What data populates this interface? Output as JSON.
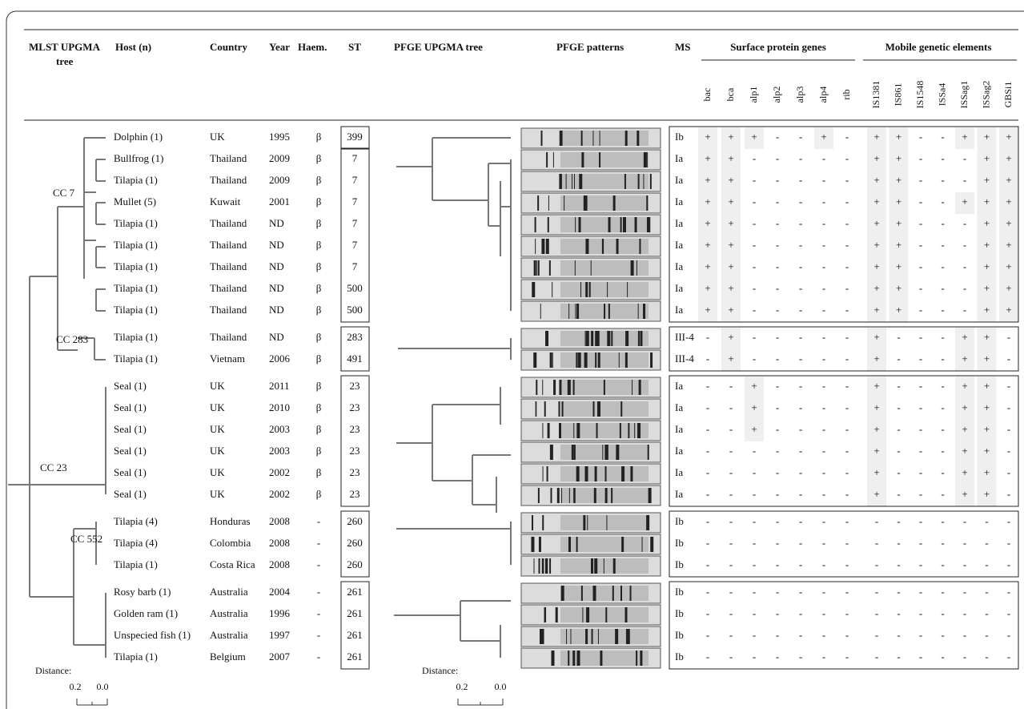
{
  "header": {
    "mlst_tree": [
      "MLST UPGMA",
      "tree"
    ],
    "host": "Host (n)",
    "country": "Country",
    "year": "Year",
    "haem": "Haem.",
    "st": "ST",
    "pfge_tree": "PFGE UPGMA tree",
    "pfge_patterns": "PFGE patterns",
    "ms": "MS",
    "surface_protein_genes": "Surface protein genes",
    "mobile_genetic_elements": "Mobile genetic elements"
  },
  "surface_genes": [
    "bac",
    "bca",
    "alp1",
    "alp2",
    "alp3",
    "alp4",
    "rib"
  ],
  "mobile_elements": [
    "IS1381",
    "IS861",
    "IS1548",
    "ISSa4",
    "ISSag1",
    "ISSag2",
    "GBSi1"
  ],
  "rows": [
    {
      "host": "Dolphin (1)",
      "country": "UK",
      "year": "1995",
      "haem": "β",
      "st": "399",
      "ms": "Ib",
      "genes": [
        "+",
        "+",
        "+",
        "-",
        "-",
        "+",
        "-"
      ],
      "mge": [
        "+",
        "+",
        "-",
        "-",
        "+",
        "+",
        "+"
      ]
    },
    {
      "host": "Bullfrog (1)",
      "country": "Thailand",
      "year": "2009",
      "haem": "β",
      "st": "7",
      "ms": "Ia",
      "genes": [
        "+",
        "+",
        "-",
        "-",
        "-",
        "-",
        "-"
      ],
      "mge": [
        "+",
        "+",
        "-",
        "-",
        "-",
        "+",
        "+"
      ]
    },
    {
      "host": "Tilapia (1)",
      "country": "Thailand",
      "year": "2009",
      "haem": "β",
      "st": "7",
      "ms": "Ia",
      "genes": [
        "+",
        "+",
        "-",
        "-",
        "-",
        "-",
        "-"
      ],
      "mge": [
        "+",
        "+",
        "-",
        "-",
        "-",
        "+",
        "+"
      ]
    },
    {
      "host": "Mullet (5)",
      "country": "Kuwait",
      "year": "2001",
      "haem": "β",
      "st": "7",
      "ms": "Ia",
      "genes": [
        "+",
        "+",
        "-",
        "-",
        "-",
        "-",
        "-"
      ],
      "mge": [
        "+",
        "+",
        "-",
        "-",
        "+",
        "+",
        "+"
      ]
    },
    {
      "host": "Tilapia (1)",
      "country": "Thailand",
      "year": "ND",
      "haem": "β",
      "st": "7",
      "ms": "Ia",
      "genes": [
        "+",
        "+",
        "-",
        "-",
        "-",
        "-",
        "-"
      ],
      "mge": [
        "+",
        "+",
        "-",
        "-",
        "-",
        "+",
        "+"
      ]
    },
    {
      "host": "Tilapia (1)",
      "country": "Thailand",
      "year": "ND",
      "haem": "β",
      "st": "7",
      "ms": "Ia",
      "genes": [
        "+",
        "+",
        "-",
        "-",
        "-",
        "-",
        "-"
      ],
      "mge": [
        "+",
        "+",
        "-",
        "-",
        "-",
        "+",
        "+"
      ]
    },
    {
      "host": "Tilapia (1)",
      "country": "Thailand",
      "year": "ND",
      "haem": "β",
      "st": "7",
      "ms": "Ia",
      "genes": [
        "+",
        "+",
        "-",
        "-",
        "-",
        "-",
        "-"
      ],
      "mge": [
        "+",
        "+",
        "-",
        "-",
        "-",
        "+",
        "+"
      ]
    },
    {
      "host": "Tilapia (1)",
      "country": "Thailand",
      "year": "ND",
      "haem": "β",
      "st": "500",
      "ms": "Ia",
      "genes": [
        "+",
        "+",
        "-",
        "-",
        "-",
        "-",
        "-"
      ],
      "mge": [
        "+",
        "+",
        "-",
        "-",
        "-",
        "+",
        "+"
      ]
    },
    {
      "host": "Tilapia (1)",
      "country": "Thailand",
      "year": "ND",
      "haem": "β",
      "st": "500",
      "ms": "Ia",
      "genes": [
        "+",
        "+",
        "-",
        "-",
        "-",
        "-",
        "-"
      ],
      "mge": [
        "+",
        "+",
        "-",
        "-",
        "-",
        "+",
        "+"
      ]
    },
    {
      "host": "Tilapia (1)",
      "country": "Thailand",
      "year": "ND",
      "haem": "β",
      "st": "283",
      "ms": "III-4",
      "genes": [
        "-",
        "+",
        "-",
        "-",
        "-",
        "-",
        "-"
      ],
      "mge": [
        "+",
        "-",
        "-",
        "-",
        "+",
        "+",
        "-"
      ]
    },
    {
      "host": "Tilapia (1)",
      "country": "Vietnam",
      "year": "2006",
      "haem": "β",
      "st": "491",
      "ms": "III-4",
      "genes": [
        "-",
        "+",
        "-",
        "-",
        "-",
        "-",
        "-"
      ],
      "mge": [
        "+",
        "-",
        "-",
        "-",
        "+",
        "+",
        "-"
      ]
    },
    {
      "host": "Seal (1)",
      "country": "UK",
      "year": "2011",
      "haem": "β",
      "st": "23",
      "ms": "Ia",
      "genes": [
        "-",
        "-",
        "+",
        "-",
        "-",
        "-",
        "-"
      ],
      "mge": [
        "+",
        "-",
        "-",
        "-",
        "+",
        "+",
        "-"
      ]
    },
    {
      "host": "Seal (1)",
      "country": "UK",
      "year": "2010",
      "haem": "β",
      "st": "23",
      "ms": "Ia",
      "genes": [
        "-",
        "-",
        "+",
        "-",
        "-",
        "-",
        "-"
      ],
      "mge": [
        "+",
        "-",
        "-",
        "-",
        "+",
        "+",
        "-"
      ]
    },
    {
      "host": "Seal (1)",
      "country": "UK",
      "year": "2003",
      "haem": "β",
      "st": "23",
      "ms": "Ia",
      "genes": [
        "-",
        "-",
        "+",
        "-",
        "-",
        "-",
        "-"
      ],
      "mge": [
        "+",
        "-",
        "-",
        "-",
        "+",
        "+",
        "-"
      ]
    },
    {
      "host": "Seal (1)",
      "country": "UK",
      "year": "2003",
      "haem": "β",
      "st": "23",
      "ms": "Ia",
      "genes": [
        "-",
        "-",
        "-",
        "-",
        "-",
        "-",
        "-"
      ],
      "mge": [
        "+",
        "-",
        "-",
        "-",
        "+",
        "+",
        "-"
      ]
    },
    {
      "host": "Seal (1)",
      "country": "UK",
      "year": "2002",
      "haem": "β",
      "st": "23",
      "ms": "Ia",
      "genes": [
        "-",
        "-",
        "-",
        "-",
        "-",
        "-",
        "-"
      ],
      "mge": [
        "+",
        "-",
        "-",
        "-",
        "+",
        "+",
        "-"
      ]
    },
    {
      "host": "Seal (1)",
      "country": "UK",
      "year": "2002",
      "haem": "β",
      "st": "23",
      "ms": "Ia",
      "genes": [
        "-",
        "-",
        "-",
        "-",
        "-",
        "-",
        "-"
      ],
      "mge": [
        "+",
        "-",
        "-",
        "-",
        "+",
        "+",
        "-"
      ]
    },
    {
      "host": "Tilapia (4)",
      "country": "Honduras",
      "year": "2008",
      "haem": "-",
      "st": "260",
      "ms": "Ib",
      "genes": [
        "-",
        "-",
        "-",
        "-",
        "-",
        "-",
        "-"
      ],
      "mge": [
        "-",
        "-",
        "-",
        "-",
        "-",
        "-",
        "-"
      ]
    },
    {
      "host": "Tilapia (4)",
      "country": "Colombia",
      "year": "2008",
      "haem": "-",
      "st": "260",
      "ms": "Ib",
      "genes": [
        "-",
        "-",
        "-",
        "-",
        "-",
        "-",
        "-"
      ],
      "mge": [
        "-",
        "-",
        "-",
        "-",
        "-",
        "-",
        "-"
      ]
    },
    {
      "host": "Tilapia (1)",
      "country": "Costa Rica",
      "year": "2008",
      "haem": "-",
      "st": "260",
      "ms": "Ib",
      "genes": [
        "-",
        "-",
        "-",
        "-",
        "-",
        "-",
        "-"
      ],
      "mge": [
        "-",
        "-",
        "-",
        "-",
        "-",
        "-",
        "-"
      ]
    },
    {
      "host": "Rosy barb (1)",
      "country": "Australia",
      "year": "2004",
      "haem": "-",
      "st": "261",
      "ms": "Ib",
      "genes": [
        "-",
        "-",
        "-",
        "-",
        "-",
        "-",
        "-"
      ],
      "mge": [
        "-",
        "-",
        "-",
        "-",
        "-",
        "-",
        "-"
      ]
    },
    {
      "host": "Golden ram (1)",
      "country": "Australia",
      "year": "1996",
      "haem": "-",
      "st": "261",
      "ms": "Ib",
      "genes": [
        "-",
        "-",
        "-",
        "-",
        "-",
        "-",
        "-"
      ],
      "mge": [
        "-",
        "-",
        "-",
        "-",
        "-",
        "-",
        "-"
      ]
    },
    {
      "host": "Unspecied fish (1)",
      "country": "Australia",
      "year": "1997",
      "haem": "-",
      "st": "261",
      "ms": "Ib",
      "genes": [
        "-",
        "-",
        "-",
        "-",
        "-",
        "-",
        "-"
      ],
      "mge": [
        "-",
        "-",
        "-",
        "-",
        "-",
        "-",
        "-"
      ]
    },
    {
      "host": "Tilapia (1)",
      "country": "Belgium",
      "year": "2007",
      "haem": "-",
      "st": "261",
      "ms": "Ib",
      "genes": [
        "-",
        "-",
        "-",
        "-",
        "-",
        "-",
        "-"
      ],
      "mge": [
        "-",
        "-",
        "-",
        "-",
        "-",
        "-",
        "-"
      ]
    }
  ],
  "clonal_complexes": [
    "CC 7",
    "CC 283",
    "CC 23",
    "CC 552"
  ],
  "distance_label": "Distance:",
  "scale_labels": [
    "0.2",
    "0.0"
  ]
}
